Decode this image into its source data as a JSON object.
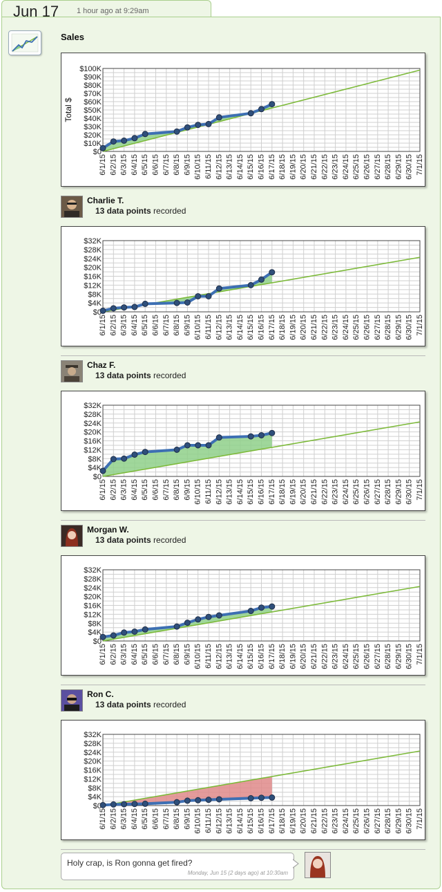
{
  "header": {
    "date": "Jun 17",
    "time_ago": "1 hour ago at 9:29am"
  },
  "app": {
    "icon": "line-chart-icon",
    "title": "Sales"
  },
  "colors": {
    "actual_line": "#3d6fb3",
    "goal_line": "#7dba3a",
    "ahead_fill": "#8fd08a",
    "behind_fill": "#df8a8a",
    "panel_bg": "#eef6e6",
    "panel_border": "#a9cf8c"
  },
  "people": [
    {
      "name": "Charlie T.",
      "count": "13 data points",
      "suffix": " recorded",
      "avatar": "avatar-charlie-icon"
    },
    {
      "name": "Chaz F.",
      "count": "13 data points",
      "suffix": " recorded",
      "avatar": "avatar-chaz-icon"
    },
    {
      "name": "Morgan W.",
      "count": "13 data points",
      "suffix": " recorded",
      "avatar": "avatar-morgan-icon"
    },
    {
      "name": "Ron C.",
      "count": "13 data points",
      "suffix": " recorded",
      "avatar": "avatar-ron-icon"
    }
  ],
  "comment": {
    "text": "Holy crap, is Ron gonna get fired?",
    "time": "Monday, Jun 15 (2 days ago) at 10:30am",
    "avatar": "avatar-commenter-icon"
  },
  "chart_data": [
    {
      "type": "line",
      "title": "Sales",
      "xlabel": "",
      "ylabel": "Total $",
      "x": [
        "6/1/15",
        "6/2/15",
        "6/3/15",
        "6/4/15",
        "6/5/15",
        "6/6/15",
        "6/7/15",
        "6/8/15",
        "6/9/15",
        "6/10/15",
        "6/11/15",
        "6/12/15",
        "6/13/15",
        "6/14/15",
        "6/15/15",
        "6/16/15",
        "6/17/15",
        "6/18/15",
        "6/19/15",
        "6/20/15",
        "6/21/15",
        "6/22/15",
        "6/23/15",
        "6/24/15",
        "6/25/15",
        "6/26/15",
        "6/27/15",
        "6/28/15",
        "6/29/15",
        "6/30/15",
        "7/1/15"
      ],
      "ylim": [
        0,
        100000
      ],
      "yticks": [
        "$0",
        "$10K",
        "$20K",
        "$30K",
        "$40K",
        "$50K",
        "$60K",
        "$70K",
        "$80K",
        "$90K",
        "$100K"
      ],
      "grid": true,
      "legend": "none",
      "series": [
        {
          "x": [
            "6/1/15",
            "6/2/15",
            "6/3/15",
            "6/4/15",
            "6/5/15",
            "6/8/15",
            "6/9/15",
            "6/10/15",
            "6/11/15",
            "6/12/15",
            "6/15/15",
            "6/16/15",
            "6/17/15"
          ],
          "values": [
            4000,
            12000,
            13000,
            16000,
            21000,
            24000,
            29000,
            32000,
            33000,
            41000,
            46000,
            51000,
            57000
          ]
        },
        {
          "x": [
            "6/1/15",
            "7/1/15"
          ],
          "values": [
            0,
            98000
          ]
        }
      ]
    },
    {
      "type": "line",
      "x": [
        "6/1/15",
        "6/2/15",
        "6/3/15",
        "6/4/15",
        "6/5/15",
        "6/6/15",
        "6/7/15",
        "6/8/15",
        "6/9/15",
        "6/10/15",
        "6/11/15",
        "6/12/15",
        "6/13/15",
        "6/14/15",
        "6/15/15",
        "6/16/15",
        "6/17/15",
        "6/18/15",
        "6/19/15",
        "6/20/15",
        "6/21/15",
        "6/22/15",
        "6/23/15",
        "6/24/15",
        "6/25/15",
        "6/26/15",
        "6/27/15",
        "6/28/15",
        "6/29/15",
        "6/30/15",
        "7/1/15"
      ],
      "ylim": [
        0,
        32000
      ],
      "yticks": [
        "$0",
        "$4K",
        "$8K",
        "$12K",
        "$16K",
        "$20K",
        "$24K",
        "$28K",
        "$32K"
      ],
      "grid": true,
      "series": [
        {
          "x": [
            "6/1/15",
            "6/2/15",
            "6/3/15",
            "6/4/15",
            "6/5/15",
            "6/8/15",
            "6/9/15",
            "6/10/15",
            "6/11/15",
            "6/12/15",
            "6/15/15",
            "6/16/15",
            "6/17/15"
          ],
          "values": [
            500,
            1600,
            2000,
            2200,
            3600,
            4000,
            4200,
            7000,
            7000,
            10500,
            12000,
            14500,
            17800
          ]
        },
        {
          "x": [
            "6/1/15",
            "7/1/15"
          ],
          "values": [
            0,
            24500
          ]
        }
      ]
    },
    {
      "type": "line",
      "x": [
        "6/1/15",
        "6/2/15",
        "6/3/15",
        "6/4/15",
        "6/5/15",
        "6/6/15",
        "6/7/15",
        "6/8/15",
        "6/9/15",
        "6/10/15",
        "6/11/15",
        "6/12/15",
        "6/13/15",
        "6/14/15",
        "6/15/15",
        "6/16/15",
        "6/17/15",
        "6/18/15",
        "6/19/15",
        "6/20/15",
        "6/21/15",
        "6/22/15",
        "6/23/15",
        "6/24/15",
        "6/25/15",
        "6/26/15",
        "6/27/15",
        "6/28/15",
        "6/29/15",
        "6/30/15",
        "7/1/15"
      ],
      "ylim": [
        0,
        32000
      ],
      "yticks": [
        "$0",
        "$4K",
        "$8K",
        "$12K",
        "$16K",
        "$20K",
        "$24K",
        "$28K",
        "$32K"
      ],
      "grid": true,
      "series": [
        {
          "x": [
            "6/1/15",
            "6/2/15",
            "6/3/15",
            "6/4/15",
            "6/5/15",
            "6/8/15",
            "6/9/15",
            "6/10/15",
            "6/11/15",
            "6/12/15",
            "6/15/15",
            "6/16/15",
            "6/17/15"
          ],
          "values": [
            2500,
            7800,
            8000,
            9800,
            11000,
            12000,
            14000,
            14000,
            14000,
            17500,
            18000,
            18500,
            19500
          ]
        },
        {
          "x": [
            "6/1/15",
            "7/1/15"
          ],
          "values": [
            0,
            24500
          ]
        }
      ]
    },
    {
      "type": "line",
      "x": [
        "6/1/15",
        "6/2/15",
        "6/3/15",
        "6/4/15",
        "6/5/15",
        "6/6/15",
        "6/7/15",
        "6/8/15",
        "6/9/15",
        "6/10/15",
        "6/11/15",
        "6/12/15",
        "6/13/15",
        "6/14/15",
        "6/15/15",
        "6/16/15",
        "6/17/15",
        "6/18/15",
        "6/19/15",
        "6/20/15",
        "6/21/15",
        "6/22/15",
        "6/23/15",
        "6/24/15",
        "6/25/15",
        "6/26/15",
        "6/27/15",
        "6/28/15",
        "6/29/15",
        "6/30/15",
        "7/1/15"
      ],
      "ylim": [
        0,
        32000
      ],
      "yticks": [
        "$0",
        "$4K",
        "$8K",
        "$12K",
        "$16K",
        "$20K",
        "$24K",
        "$28K",
        "$32K"
      ],
      "grid": true,
      "series": [
        {
          "x": [
            "6/1/15",
            "6/2/15",
            "6/3/15",
            "6/4/15",
            "6/5/15",
            "6/8/15",
            "6/9/15",
            "6/10/15",
            "6/11/15",
            "6/12/15",
            "6/15/15",
            "6/16/15",
            "6/17/15"
          ],
          "values": [
            1800,
            2500,
            3800,
            4200,
            5200,
            6500,
            8200,
            9700,
            10800,
            11500,
            13500,
            15000,
            15500
          ]
        },
        {
          "x": [
            "6/1/15",
            "7/1/15"
          ],
          "values": [
            0,
            24500
          ]
        }
      ]
    },
    {
      "type": "line",
      "x": [
        "6/1/15",
        "6/2/15",
        "6/3/15",
        "6/4/15",
        "6/5/15",
        "6/6/15",
        "6/7/15",
        "6/8/15",
        "6/9/15",
        "6/10/15",
        "6/11/15",
        "6/12/15",
        "6/13/15",
        "6/14/15",
        "6/15/15",
        "6/16/15",
        "6/17/15",
        "6/18/15",
        "6/19/15",
        "6/20/15",
        "6/21/15",
        "6/22/15",
        "6/23/15",
        "6/24/15",
        "6/25/15",
        "6/26/15",
        "6/27/15",
        "6/28/15",
        "6/29/15",
        "6/30/15",
        "7/1/15"
      ],
      "ylim": [
        0,
        32000
      ],
      "yticks": [
        "$0",
        "$4K",
        "$8K",
        "$12K",
        "$16K",
        "$20K",
        "$24K",
        "$28K",
        "$32K"
      ],
      "grid": true,
      "series": [
        {
          "x": [
            "6/1/15",
            "6/2/15",
            "6/3/15",
            "6/4/15",
            "6/5/15",
            "6/8/15",
            "6/9/15",
            "6/10/15",
            "6/11/15",
            "6/12/15",
            "6/15/15",
            "6/16/15",
            "6/17/15"
          ],
          "values": [
            200,
            500,
            600,
            700,
            800,
            1500,
            2200,
            2400,
            2600,
            2800,
            3300,
            3500,
            3600
          ]
        },
        {
          "x": [
            "6/1/15",
            "7/1/15"
          ],
          "values": [
            0,
            24500
          ]
        }
      ]
    }
  ]
}
